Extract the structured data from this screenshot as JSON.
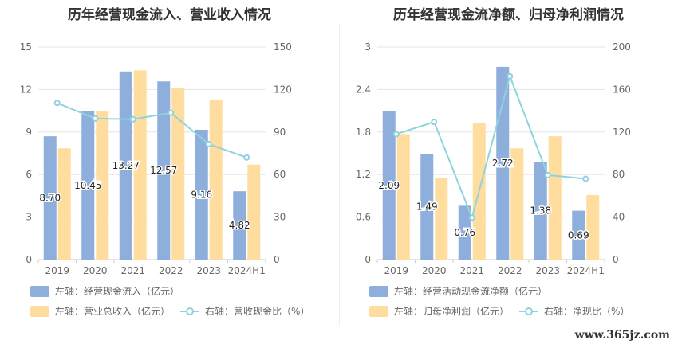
{
  "watermark": "www.365jz.com",
  "chart_data": [
    {
      "type": "bar",
      "title": "历年经营现金流入、营业收入情况",
      "categories": [
        "2019",
        "2020",
        "2021",
        "2022",
        "2023",
        "2024H1"
      ],
      "left_axis": {
        "min": 0,
        "max": 15,
        "ticks": [
          "0",
          "3",
          "6",
          "9",
          "12",
          "15"
        ]
      },
      "right_axis": {
        "min": 0,
        "max": 150,
        "ticks": [
          "0",
          "30",
          "60",
          "90",
          "120",
          "150"
        ]
      },
      "grid": true,
      "legend_position": "bottom",
      "series": [
        {
          "name": "左轴：经营现金流入（亿元）",
          "kind": "bar",
          "axis": "left",
          "color": "#8eaedc",
          "values": [
            8.7,
            10.45,
            13.27,
            12.57,
            9.16,
            4.82
          ],
          "labels": [
            "8.70",
            "10.45",
            "13.27",
            "12.57",
            "9.16",
            "4.82"
          ]
        },
        {
          "name": "左轴：营业总收入（亿元）",
          "kind": "bar",
          "axis": "left",
          "color": "#fedd9e",
          "values": [
            7.85,
            10.5,
            13.35,
            12.1,
            11.25,
            6.7
          ]
        },
        {
          "name": "右轴：营收现金比（%）",
          "kind": "line",
          "axis": "right",
          "color": "#8fd3df",
          "values": [
            110.5,
            99.5,
            99.0,
            103.5,
            81.5,
            72.0
          ]
        }
      ]
    },
    {
      "type": "bar",
      "title": "历年经营现金流净额、归母净利润情况",
      "categories": [
        "2019",
        "2020",
        "2021",
        "2022",
        "2023",
        "2024H1"
      ],
      "left_axis": {
        "min": 0,
        "max": 3,
        "ticks": [
          "0",
          "0.6",
          "1.2",
          "1.8",
          "2.4",
          "3"
        ]
      },
      "right_axis": {
        "min": 0,
        "max": 200,
        "ticks": [
          "0",
          "40",
          "80",
          "120",
          "160",
          "200"
        ]
      },
      "grid": true,
      "legend_position": "bottom",
      "series": [
        {
          "name": "左轴：经营活动现金流净额（亿元）",
          "kind": "bar",
          "axis": "left",
          "color": "#8eaedc",
          "values": [
            2.09,
            1.49,
            0.76,
            2.72,
            1.38,
            0.69
          ],
          "labels": [
            "2.09",
            "1.49",
            "0.76",
            "2.72",
            "1.38",
            "0.69"
          ]
        },
        {
          "name": "左轴：归母净利润（亿元）",
          "kind": "bar",
          "axis": "left",
          "color": "#fedd9e",
          "values": [
            1.77,
            1.15,
            1.93,
            1.57,
            1.74,
            0.91
          ]
        },
        {
          "name": "右轴：净现比（%）",
          "kind": "line",
          "axis": "right",
          "color": "#8fd3df",
          "values": [
            118.0,
            129.5,
            39.5,
            172.5,
            79.5,
            76.0
          ]
        }
      ]
    }
  ]
}
